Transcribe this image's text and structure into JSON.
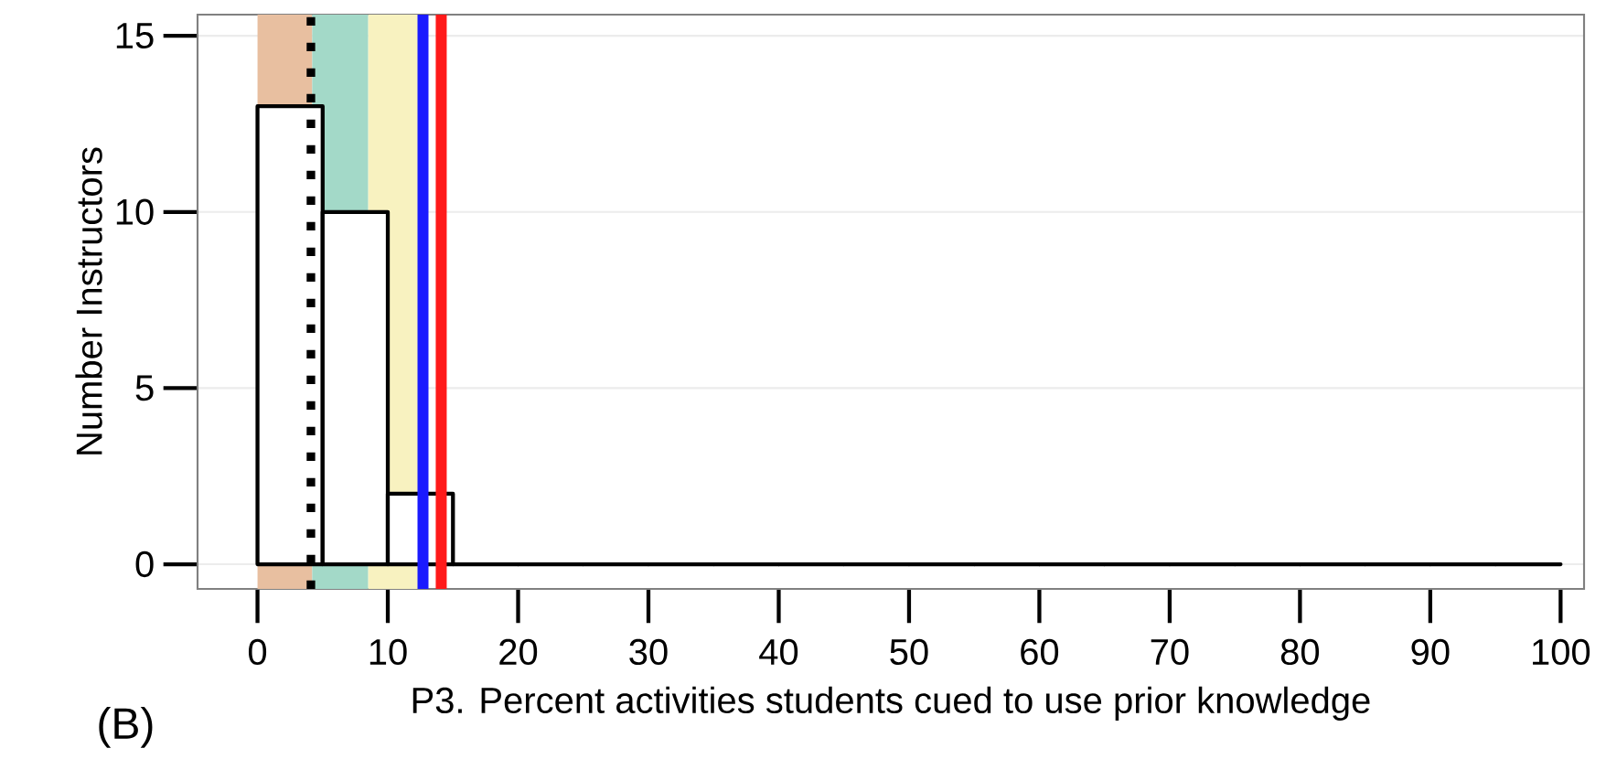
{
  "chart_data": {
    "type": "histogram",
    "xlabel": "P3. Percent activities students cued to use prior knowledge",
    "ylabel": "Number Instructors",
    "annotations": [
      "(B)"
    ],
    "bins": [
      0,
      5,
      10,
      15,
      20,
      25,
      30,
      35,
      40,
      45,
      50,
      55,
      60,
      65,
      70,
      75,
      80,
      85,
      90,
      95,
      100
    ],
    "values": [
      13,
      10,
      2,
      0,
      0,
      0,
      0,
      0,
      0,
      0,
      0,
      0,
      0,
      0,
      0,
      0,
      0,
      0,
      0,
      0
    ],
    "color": "#000000",
    "xlim": [
      -4.6,
      101.8
    ],
    "ylim": [
      -0.7,
      15.6
    ],
    "xticks": [
      0,
      10,
      20,
      30,
      40,
      50,
      60,
      70,
      80,
      90,
      100
    ],
    "yticks": [
      0,
      5,
      10,
      15
    ],
    "grid": "y",
    "bands": [
      {
        "axis": "x",
        "from": 0,
        "to": 4.2,
        "color": "#e8bfa0"
      },
      {
        "axis": "x",
        "from": 4.2,
        "to": 8.5,
        "color": "#a3d9c8"
      },
      {
        "axis": "x",
        "from": 8.5,
        "to": 12.5,
        "color": "#f8f2c0"
      }
    ],
    "ref_lines": [
      {
        "axis": "x",
        "value": 4.1,
        "color": "#000000",
        "line_style": "dotted"
      },
      {
        "axis": "x",
        "value": 12.7,
        "color": "#1a1aff",
        "line_style": "solid"
      },
      {
        "axis": "x",
        "value": 14.1,
        "color": "#ff1a1a",
        "line_style": "solid"
      }
    ]
  }
}
